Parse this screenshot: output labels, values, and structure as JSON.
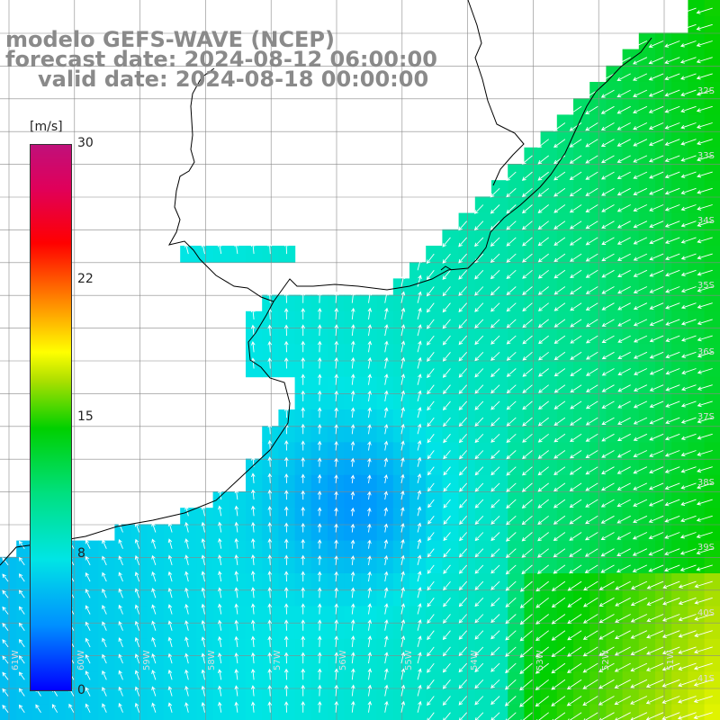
{
  "header": {
    "model": "modelo GEFS-WAVE (NCEP)",
    "forecast": "forecast date: 2024-08-12 06:00:00",
    "valid": "valid date: 2024-08-18 00:00:00"
  },
  "colorbar": {
    "unit": "[m/s]",
    "ticks": [
      "30",
      "22",
      "15",
      "8",
      "0"
    ],
    "range": [
      0,
      30
    ],
    "colors": [
      "#0000ff",
      "#0090ff",
      "#00e5e5",
      "#00e080",
      "#00d000",
      "#b0e000",
      "#ffff00",
      "#ff9900",
      "#ff0000",
      "#e0005a",
      "#c0107a"
    ]
  },
  "lat_labels": [
    "32S",
    "33S",
    "34S",
    "35S",
    "36S",
    "37S",
    "38S",
    "39S",
    "40S",
    "41S"
  ],
  "lon_labels": [
    "61W",
    "60W",
    "59W",
    "58W",
    "57W",
    "56W",
    "55W",
    "54W",
    "53W",
    "52W",
    "51W"
  ],
  "colors": {
    "land": "#ffffff",
    "coastline": "#000000",
    "grid": "#888888",
    "arrow": "#ffffff",
    "title": "#8a8a8a"
  }
}
